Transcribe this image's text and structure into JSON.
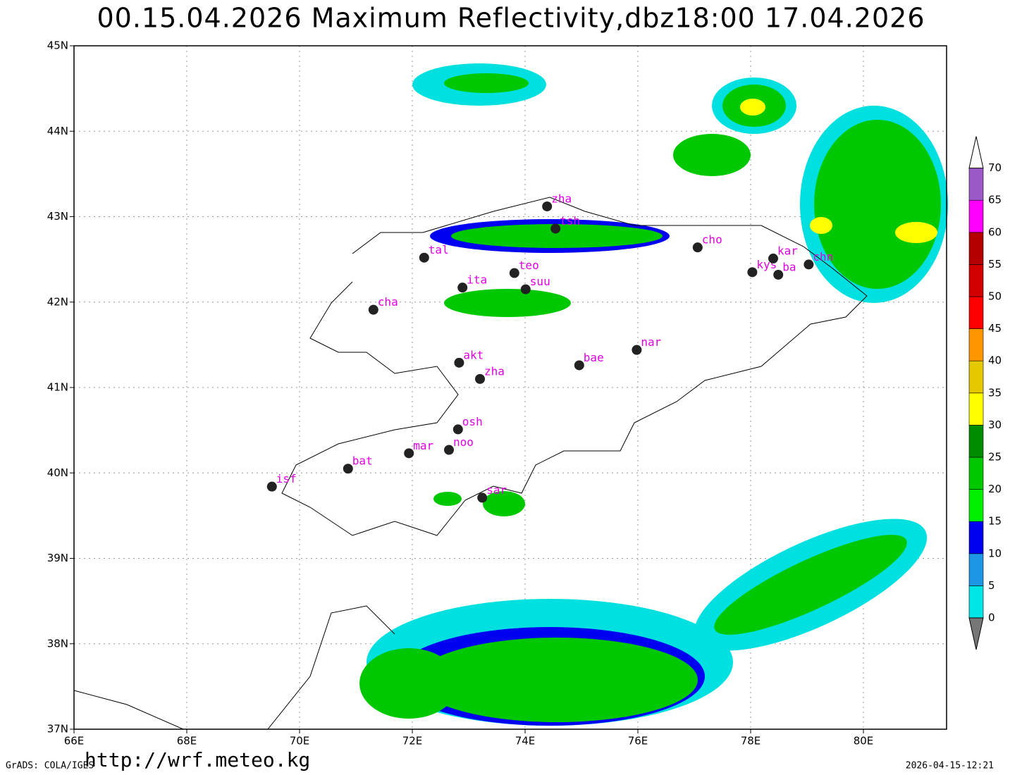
{
  "title": "00.15.04.2026  Maximum  Reflectivity,dbz18:00  17.04.2026",
  "map": {
    "xlim": [
      66,
      81.475
    ],
    "ylim": [
      37,
      45
    ],
    "xticks": [
      {
        "value": 66,
        "label": "66E"
      },
      {
        "value": 68,
        "label": "68E"
      },
      {
        "value": 70,
        "label": "70E"
      },
      {
        "value": 72,
        "label": "72E"
      },
      {
        "value": 74,
        "label": "74E"
      },
      {
        "value": 76,
        "label": "76E"
      },
      {
        "value": 78,
        "label": "78E"
      },
      {
        "value": 80,
        "label": "80E"
      }
    ],
    "yticks": [
      {
        "value": 37,
        "label": "37N"
      },
      {
        "value": 38,
        "label": "38N"
      },
      {
        "value": 39,
        "label": "39N"
      },
      {
        "value": 40,
        "label": "40N"
      },
      {
        "value": 41,
        "label": "41N"
      },
      {
        "value": 42,
        "label": "42N"
      },
      {
        "value": 43,
        "label": "43N"
      },
      {
        "value": 44,
        "label": "44N"
      },
      {
        "value": 45,
        "label": "45N"
      }
    ],
    "grid": true,
    "stations": [
      {
        "label": "zha",
        "lon": 74.39,
        "lat": 43.12
      },
      {
        "label": "tsh",
        "lon": 74.54,
        "lat": 42.86
      },
      {
        "label": "tal",
        "lon": 72.21,
        "lat": 42.52
      },
      {
        "label": "teo",
        "lon": 73.81,
        "lat": 42.34
      },
      {
        "label": "ita",
        "lon": 72.89,
        "lat": 42.17
      },
      {
        "label": "suu",
        "lon": 74.01,
        "lat": 42.15
      },
      {
        "label": "cha",
        "lon": 71.31,
        "lat": 41.91
      },
      {
        "label": "cho",
        "lon": 77.06,
        "lat": 42.64
      },
      {
        "label": "kys",
        "lon": 78.03,
        "lat": 42.35
      },
      {
        "label": "kar",
        "lon": 78.4,
        "lat": 42.51
      },
      {
        "label": "ba",
        "lon": 78.49,
        "lat": 42.32
      },
      {
        "label": "chn",
        "lon": 79.03,
        "lat": 42.44
      },
      {
        "label": "nar",
        "lon": 75.98,
        "lat": 41.44
      },
      {
        "label": "bae",
        "lon": 74.96,
        "lat": 41.26
      },
      {
        "label": "akt",
        "lon": 72.83,
        "lat": 41.29
      },
      {
        "label": "zha",
        "lon": 73.2,
        "lat": 41.1
      },
      {
        "label": "osh",
        "lon": 72.81,
        "lat": 40.51
      },
      {
        "label": "noo",
        "lon": 72.65,
        "lat": 40.27
      },
      {
        "label": "mar",
        "lon": 71.94,
        "lat": 40.23
      },
      {
        "label": "bat",
        "lon": 70.86,
        "lat": 40.05
      },
      {
        "label": "isf",
        "lon": 69.51,
        "lat": 39.84
      },
      {
        "label": "sar",
        "lon": 73.24,
        "lat": 39.71
      }
    ]
  },
  "colorbar": {
    "levels": [
      0,
      5,
      10,
      15,
      20,
      25,
      30,
      35,
      40,
      45,
      50,
      55,
      60,
      65,
      70
    ],
    "colors": [
      "#00e6e6",
      "#1e96e6",
      "#0000f0",
      "#00f000",
      "#00c800",
      "#008c00",
      "#ffff00",
      "#e6c800",
      "#ff9600",
      "#ff0000",
      "#d20000",
      "#b40000",
      "#ff00ff",
      "#9b59c8"
    ]
  },
  "footer": {
    "left": "GrADS: COLA/IGES",
    "url": "http://wrf.meteo.kg",
    "right": "2026-04-15-12:21"
  }
}
